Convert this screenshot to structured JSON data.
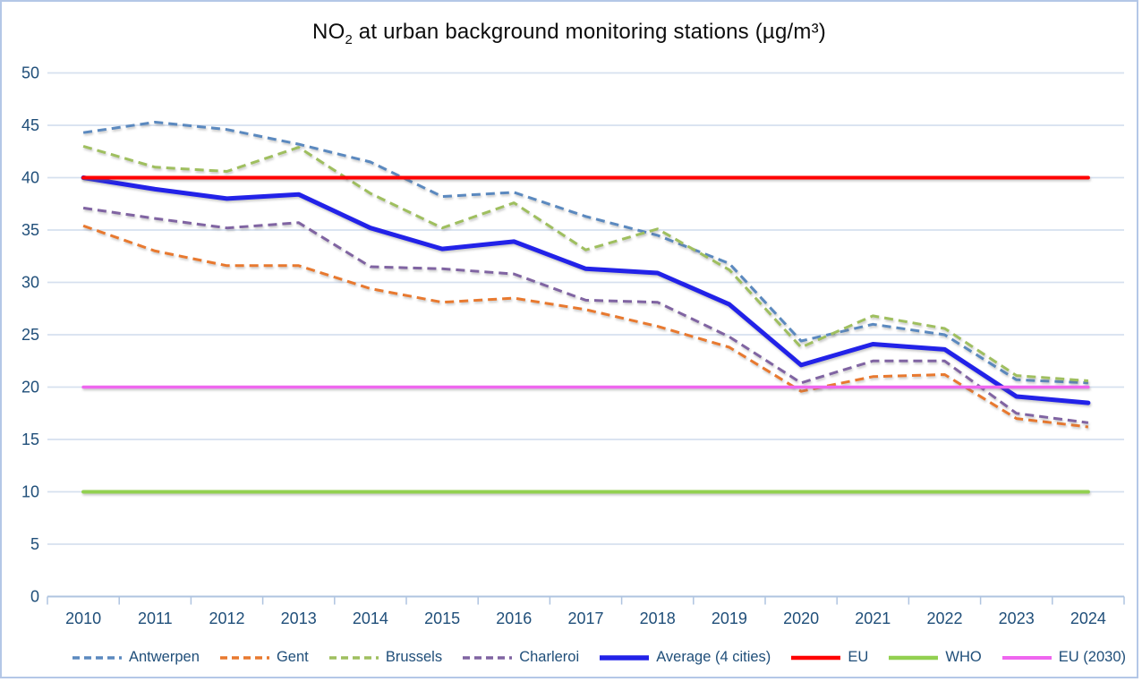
{
  "title": {
    "part1": "NO",
    "sub": "2",
    "part2": " at urban background monitoring stations (µg/m³)"
  },
  "chart_data": {
    "type": "line",
    "title": "NO2 at urban background monitoring stations (µg/m³)",
    "categories": [
      "2010",
      "2011",
      "2012",
      "2013",
      "2014",
      "2015",
      "2016",
      "2017",
      "2018",
      "2019",
      "2020",
      "2021",
      "2022",
      "2023",
      "2024"
    ],
    "xlabel": "",
    "ylabel": "",
    "ylim": [
      0,
      50
    ],
    "y_ticks": [
      0,
      5,
      10,
      15,
      20,
      25,
      30,
      35,
      40,
      45,
      50
    ],
    "grid": true,
    "legend_position": "bottom",
    "gridline_color": "#D6E0EF",
    "axis_line_color": "#AFC4E0",
    "tick_label_color": "#1F4E79",
    "series": [
      {
        "name": "Antwerpen",
        "color": "#5B89BF",
        "dash": true,
        "width": 3,
        "values": [
          44.3,
          45.3,
          44.6,
          43.2,
          41.5,
          38.2,
          38.6,
          36.3,
          34.5,
          31.8,
          24.4,
          26.0,
          25.0,
          20.7,
          20.4
        ]
      },
      {
        "name": "Gent",
        "color": "#E8792F",
        "dash": true,
        "width": 3,
        "values": [
          35.4,
          33.0,
          31.6,
          31.6,
          29.4,
          28.1,
          28.5,
          27.4,
          25.8,
          23.8,
          19.6,
          21.0,
          21.2,
          17.0,
          16.2
        ]
      },
      {
        "name": "Brussels",
        "color": "#9FBF5F",
        "dash": true,
        "width": 3,
        "values": [
          43.0,
          41.0,
          40.6,
          42.9,
          38.5,
          35.2,
          37.6,
          33.1,
          35.1,
          31.2,
          23.8,
          26.8,
          25.6,
          21.1,
          20.6
        ]
      },
      {
        "name": "Charleroi",
        "color": "#8064A2",
        "dash": true,
        "width": 3,
        "values": [
          37.1,
          36.1,
          35.2,
          35.7,
          31.5,
          31.3,
          30.8,
          28.3,
          28.1,
          24.8,
          20.4,
          22.5,
          22.5,
          17.5,
          16.6
        ]
      },
      {
        "name": "Average (4 cities)",
        "color": "#2222E8",
        "dash": false,
        "width": 5,
        "values": [
          40.0,
          38.9,
          38.0,
          38.4,
          35.2,
          33.2,
          33.9,
          31.3,
          30.9,
          27.9,
          22.1,
          24.1,
          23.6,
          19.1,
          18.5
        ]
      },
      {
        "name": "EU",
        "color": "#FF0000",
        "dash": false,
        "width": 4,
        "values": [
          40,
          40,
          40,
          40,
          40,
          40,
          40,
          40,
          40,
          40,
          40,
          40,
          40,
          40,
          40
        ]
      },
      {
        "name": "WHO",
        "color": "#92D050",
        "dash": false,
        "width": 4,
        "values": [
          10,
          10,
          10,
          10,
          10,
          10,
          10,
          10,
          10,
          10,
          10,
          10,
          10,
          10,
          10
        ]
      },
      {
        "name": "EU (2030)",
        "color": "#EF66EF",
        "dash": false,
        "width": 3.5,
        "values": [
          20,
          20,
          20,
          20,
          20,
          20,
          20,
          20,
          20,
          20,
          20,
          20,
          20,
          20,
          20
        ]
      }
    ]
  }
}
